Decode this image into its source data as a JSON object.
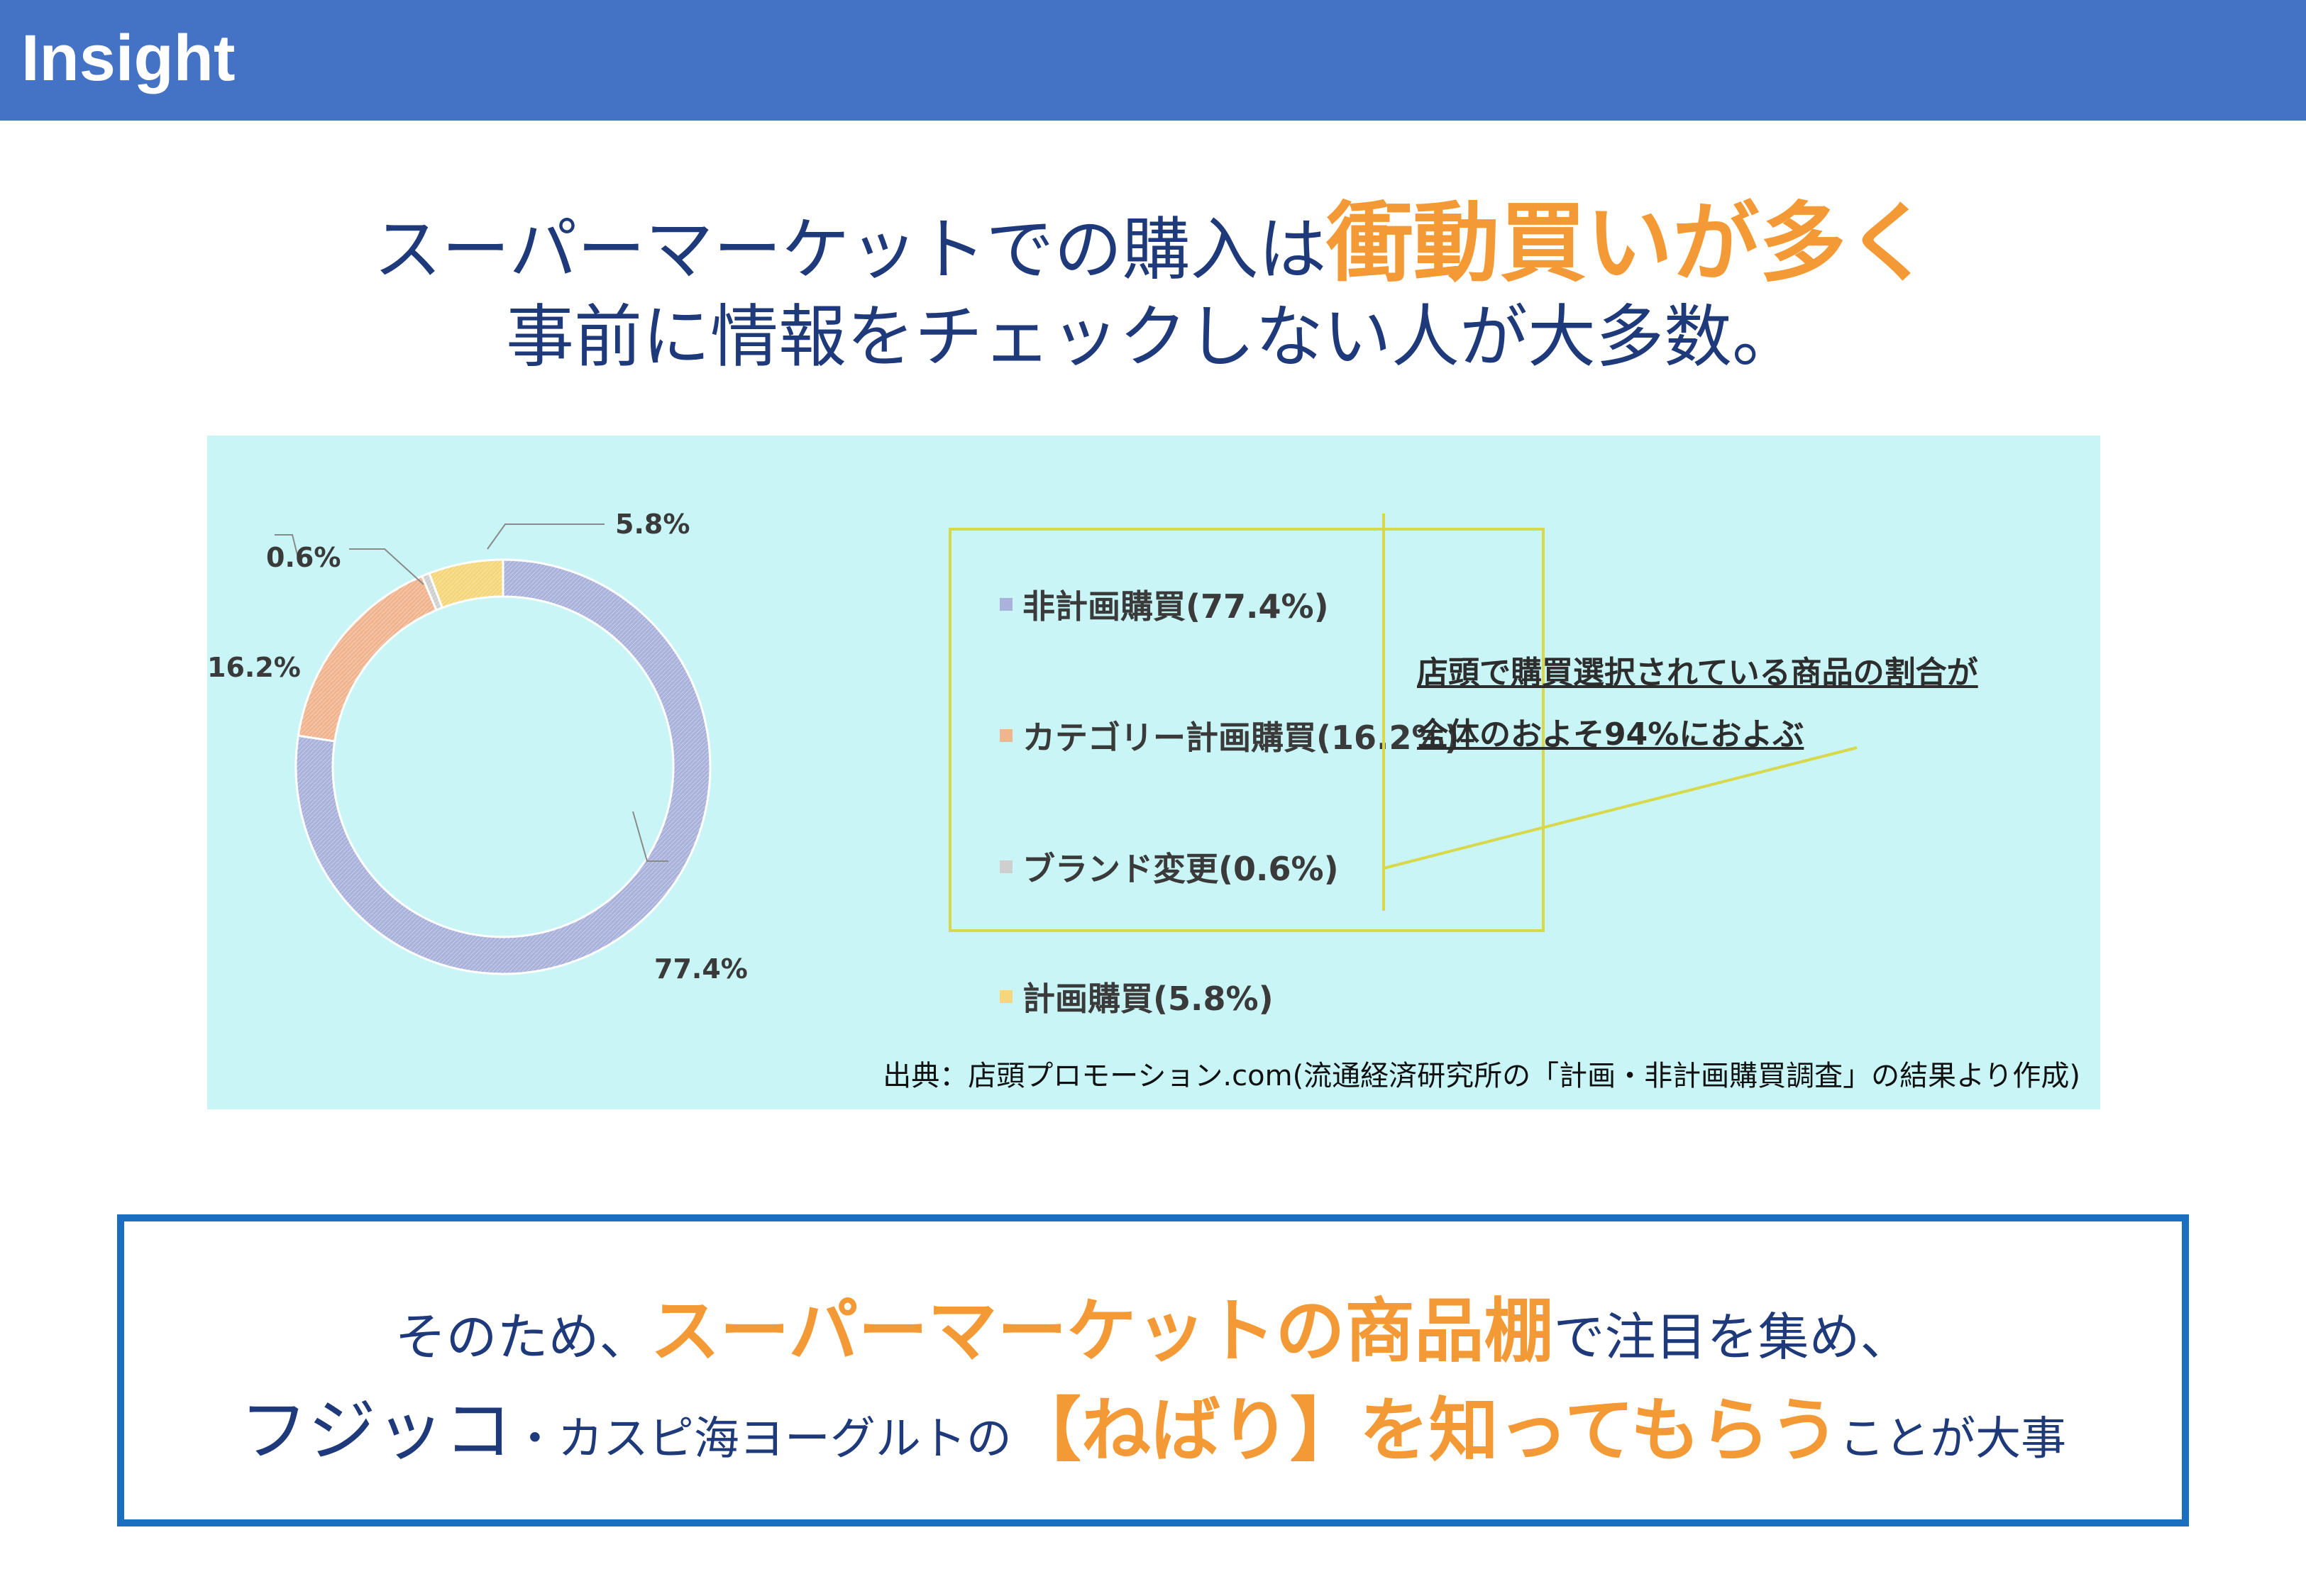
{
  "header": {
    "title": "Insight"
  },
  "headline": {
    "line1_pre": "スーパーマーケットでの購入は",
    "line1_accent": "衝動買いが多く",
    "line2": "事前に情報をチェックしない人が大多数。"
  },
  "chart_data": {
    "type": "pie",
    "donut": true,
    "categories": [
      "非計画購買",
      "カテゴリー計画購買",
      "ブランド変更",
      "計画購買"
    ],
    "values": [
      77.4,
      16.2,
      0.6,
      5.8
    ],
    "colors": [
      "#aab2dc",
      "#f0b48e",
      "#cfcfcf",
      "#f6d67a"
    ],
    "data_labels": [
      "77.4%",
      "16.2%",
      "0.6%",
      "5.8%"
    ],
    "legend": [
      "非計画購買(77.4%)",
      "カテゴリー計画購買(16.2%)",
      "ブランド変更(0.6%)",
      "計画購買(5.8%)"
    ],
    "legend_placement": "right",
    "callout": [
      "店頭で購買選択されている商品の割合が",
      "全体のおよそ94%におよぶ"
    ],
    "source": "出典：店頭プロモーション.com(流通経済研究所の「計画・非計画購買調査」の結果より作成)"
  },
  "conclusion": {
    "line1_pre": "そのため、",
    "line1_accent": "スーパーマーケットの商品棚",
    "line1_post": "で注目を集め、",
    "line2_big": "フジッコ",
    "line2_mid": "・カスピ海ヨーグルトの",
    "line2_accent": "【ねばり】を知ってもらう",
    "line2_post": "ことが大事"
  }
}
